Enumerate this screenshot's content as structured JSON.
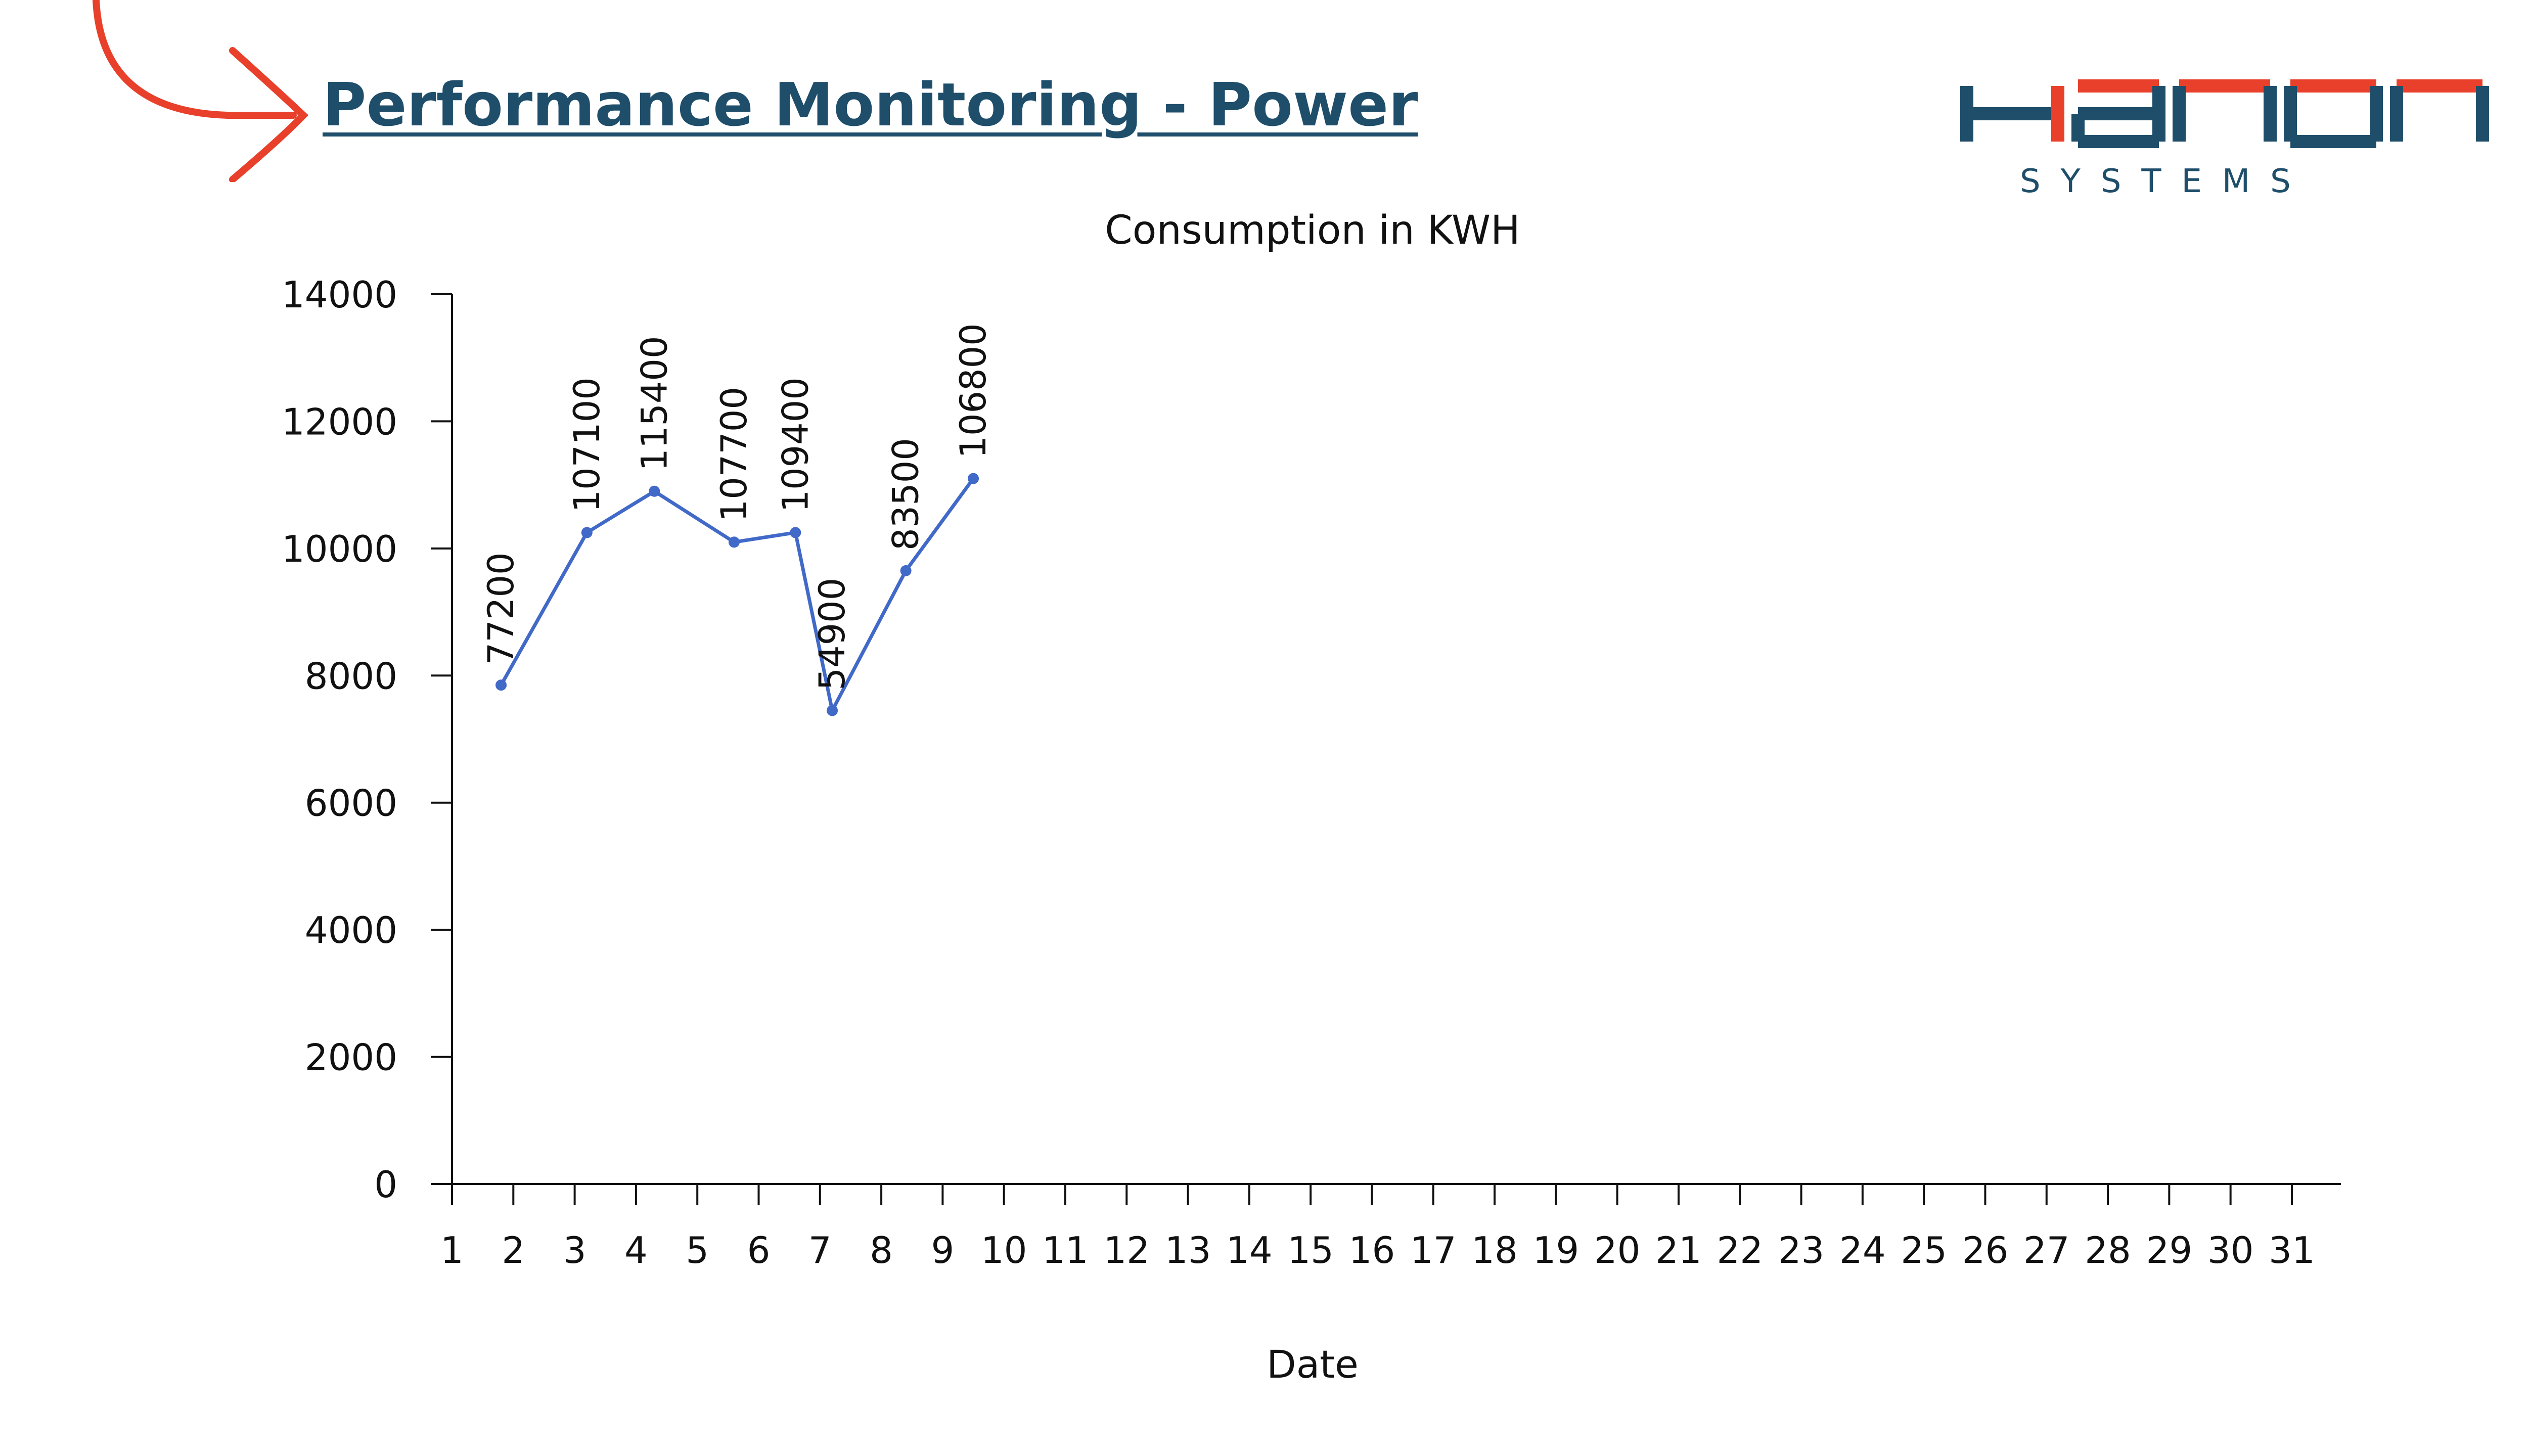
{
  "page": {
    "title": "Performance Monitoring - Power"
  },
  "logo": {
    "brand": "HANON",
    "sub": "SYSTEMS",
    "colors": {
      "red": "#e8402a",
      "navy": "#1f4e6b"
    }
  },
  "decor": {
    "arrow_color": "#e8402a"
  },
  "chart_data": {
    "type": "line",
    "title": "Consumption  in KWH",
    "xlabel": "Date",
    "ylabel": "",
    "ylim": [
      0,
      14000
    ],
    "yticks": [
      0,
      2000,
      4000,
      6000,
      8000,
      10000,
      12000,
      14000
    ],
    "categories": [
      "1",
      "2",
      "3",
      "4",
      "5",
      "6",
      "7",
      "8",
      "9",
      "10",
      "11",
      "12",
      "13",
      "14",
      "15",
      "16",
      "17",
      "18",
      "19",
      "20",
      "21",
      "22",
      "23",
      "24",
      "25",
      "26",
      "27",
      "28",
      "29",
      "30",
      "31"
    ],
    "series": [
      {
        "color": "#4169c8",
        "points": [
          {
            "x": 1.8,
            "y": 7850,
            "label": "77200"
          },
          {
            "x": 3.2,
            "y": 10250,
            "label": "107100"
          },
          {
            "x": 4.3,
            "y": 10900,
            "label": "115400"
          },
          {
            "x": 5.6,
            "y": 10100,
            "label": "107700"
          },
          {
            "x": 6.6,
            "y": 10250,
            "label": "109400"
          },
          {
            "x": 7.2,
            "y": 7450,
            "label": "54900"
          },
          {
            "x": 8.4,
            "y": 9650,
            "label": "83500"
          },
          {
            "x": 9.5,
            "y": 11100,
            "label": "106800"
          }
        ]
      }
    ],
    "grid": false,
    "legend": "none"
  }
}
